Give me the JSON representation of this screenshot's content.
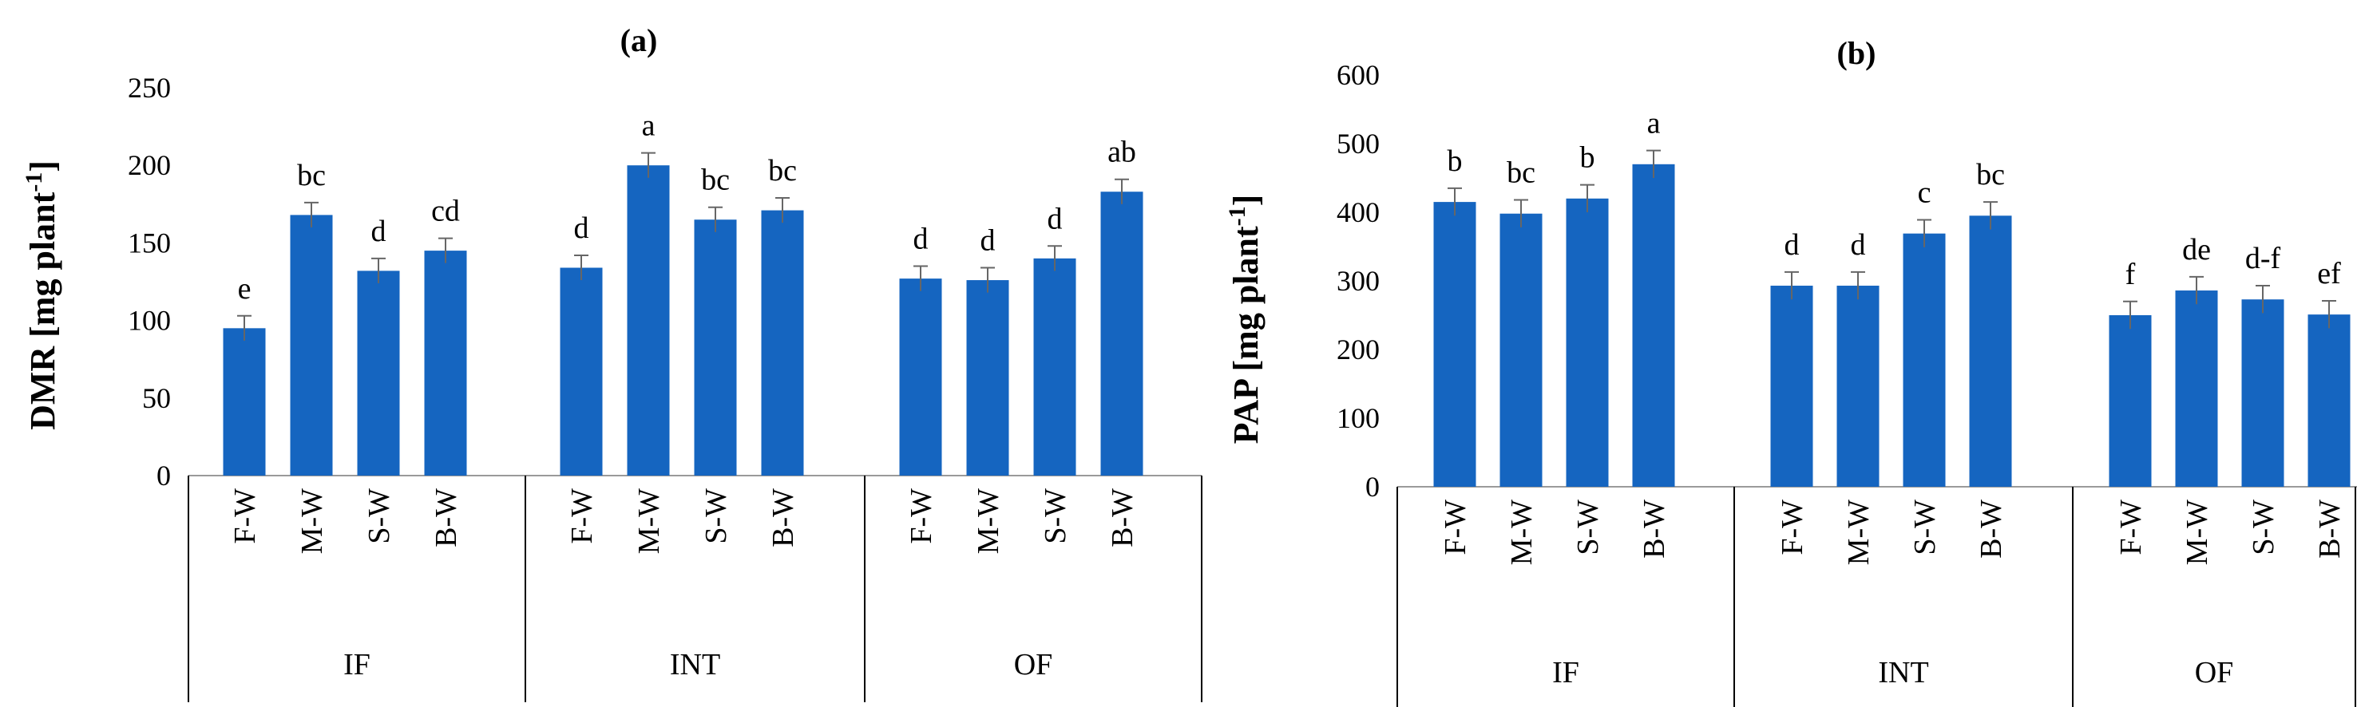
{
  "chart_data": [
    {
      "type": "bar",
      "title": "(a)",
      "ylabel": "DMR [mg plant-1]",
      "ylabel_main": "DMR [mg plant",
      "ylabel_sup": "-1",
      "ylabel_end": "]",
      "ylim": [
        0,
        250
      ],
      "yticks": [
        0,
        50,
        100,
        150,
        200,
        250
      ],
      "grid": false,
      "bar_color": "#1565C0",
      "groups": [
        "IF",
        "INT",
        "OF"
      ],
      "categories": [
        "F-W",
        "M-W",
        "S-W",
        "B-W"
      ],
      "values": [
        [
          95,
          168,
          132,
          145
        ],
        [
          134,
          200,
          165,
          171
        ],
        [
          127,
          126,
          140,
          183
        ]
      ],
      "errors": [
        [
          8,
          8,
          8,
          8
        ],
        [
          8,
          8,
          8,
          8
        ],
        [
          8,
          8,
          8,
          8
        ]
      ],
      "letters": [
        [
          "e",
          "bc",
          "d",
          "cd"
        ],
        [
          "d",
          "a",
          "bc",
          "bc"
        ],
        [
          "d",
          "d",
          "d",
          "ab"
        ]
      ]
    },
    {
      "type": "bar",
      "title": "(b)",
      "ylabel": "PAP [mg plant-1]",
      "ylabel_main": "PAP [mg plant",
      "ylabel_sup": "-1",
      "ylabel_end": "]",
      "ylim": [
        0,
        600
      ],
      "yticks": [
        0,
        100,
        200,
        300,
        400,
        500,
        600
      ],
      "grid": false,
      "bar_color": "#1565C0",
      "groups": [
        "IF",
        "INT",
        "OF"
      ],
      "categories": [
        "F-W",
        "M-W",
        "S-W",
        "B-W"
      ],
      "values": [
        [
          415,
          398,
          420,
          470
        ],
        [
          293,
          293,
          369,
          395
        ],
        [
          250,
          286,
          273,
          251
        ]
      ],
      "errors": [
        [
          20,
          20,
          20,
          20
        ],
        [
          20,
          20,
          20,
          20
        ],
        [
          20,
          20,
          20,
          20
        ]
      ],
      "letters": [
        [
          "b",
          "bc",
          "b",
          "a"
        ],
        [
          "d",
          "d",
          "c",
          "bc"
        ],
        [
          "f",
          "de",
          "d-f",
          "ef"
        ]
      ]
    }
  ]
}
